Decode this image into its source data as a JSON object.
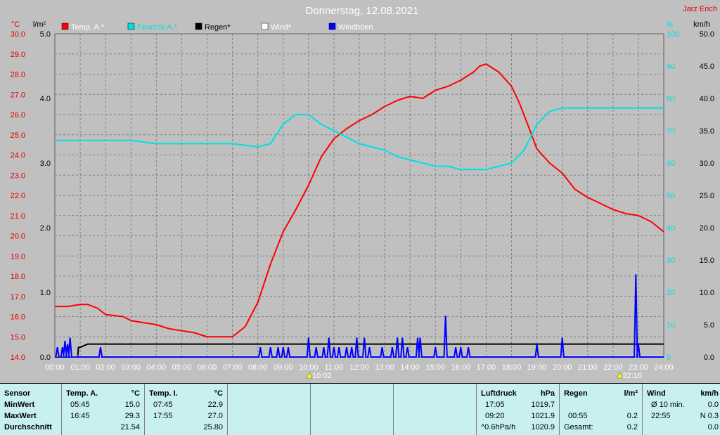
{
  "header": {
    "title": "Donnerstag, 12.08.2021",
    "user": "Jarz Erich"
  },
  "colors": {
    "temp": "#ff0000",
    "humidity": "#00e0e0",
    "rain": "#000000",
    "wind": "#ffffff",
    "gusts": "#0000ff",
    "grid": "#808080",
    "plot_bg": "#c0c0c0",
    "table_bg": "#c8f0f0"
  },
  "chart_data": {
    "type": "line",
    "title": "Donnerstag, 12.08.2021",
    "x_ticks": [
      "00:00",
      "01:00",
      "02:00",
      "03:00",
      "04:00",
      "05:00",
      "06:00",
      "07:00",
      "08:00",
      "09:00",
      "10:00",
      "11:00",
      "12:00",
      "13:00",
      "14:00",
      "15:00",
      "16:00",
      "17:00",
      "18:00",
      "19:00",
      "20:00",
      "21:00",
      "22:00",
      "23:00",
      "24:00"
    ],
    "axes": {
      "temp": {
        "unit": "°C",
        "range": [
          14.0,
          30.0
        ],
        "ticks": [
          "30.0",
          "29.0",
          "28.0",
          "27.0",
          "26.0",
          "25.0",
          "24.0",
          "23.0",
          "22.0",
          "21.0",
          "20.0",
          "19.0",
          "18.0",
          "17.0",
          "16.0",
          "15.0",
          "14.0"
        ]
      },
      "rain": {
        "unit": "l/m²",
        "range": [
          0.0,
          5.0
        ],
        "ticks": [
          "5.0",
          "4.0",
          "3.0",
          "2.0",
          "1.0",
          "0.0"
        ]
      },
      "humidity": {
        "unit": "%",
        "range": [
          0,
          100
        ],
        "ticks": [
          "100",
          "90",
          "80",
          "70",
          "60",
          "50",
          "40",
          "30",
          "20",
          "10",
          "0"
        ]
      },
      "wind": {
        "unit": "km/h",
        "range": [
          0.0,
          50.0
        ],
        "ticks": [
          "50.0",
          "45.0",
          "40.0",
          "35.0",
          "30.0",
          "25.0",
          "20.0",
          "15.0",
          "10.0",
          "5.0",
          "0.0"
        ]
      }
    },
    "series": [
      {
        "name": "Temp. A.*",
        "axis": "temp",
        "x": [
          0,
          0.5,
          1,
          1.3,
          1.7,
          2,
          2.7,
          3,
          3.5,
          4,
          4.5,
          5,
          5.5,
          5.75,
          6,
          6.5,
          7,
          7.5,
          8,
          8.5,
          9,
          9.5,
          10,
          10.5,
          11,
          11.5,
          12,
          12.5,
          13,
          13.5,
          14,
          14.5,
          15,
          15.5,
          16,
          16.5,
          16.75,
          17,
          17.5,
          18,
          18.3,
          18.7,
          19,
          19.5,
          20,
          20.5,
          21,
          21.5,
          22,
          22.5,
          23,
          23.5,
          24
        ],
        "y": [
          16.5,
          16.5,
          16.6,
          16.6,
          16.4,
          16.1,
          16.0,
          15.8,
          15.7,
          15.6,
          15.4,
          15.3,
          15.2,
          15.1,
          15.0,
          15.0,
          15.0,
          15.5,
          16.7,
          18.6,
          20.2,
          21.3,
          22.5,
          23.9,
          24.8,
          25.3,
          25.7,
          26.0,
          26.4,
          26.7,
          26.9,
          26.8,
          27.2,
          27.4,
          27.7,
          28.1,
          28.4,
          28.5,
          28.1,
          27.4,
          26.6,
          25.3,
          24.3,
          23.6,
          23.1,
          22.3,
          21.9,
          21.6,
          21.3,
          21.1,
          21.0,
          20.7,
          20.2
        ]
      },
      {
        "name": "Feuchte A.*",
        "axis": "humidity",
        "x": [
          0,
          1,
          2,
          3,
          4,
          5,
          6,
          7,
          8,
          8.5,
          9,
          9.5,
          10,
          10.5,
          11,
          11.5,
          12,
          12.5,
          13,
          13.5,
          14,
          14.5,
          15,
          15.5,
          16,
          16.5,
          17,
          17.5,
          18,
          18.5,
          19,
          19.5,
          20,
          20.5,
          21,
          22,
          23,
          24
        ],
        "y": [
          67,
          67,
          67,
          67,
          66,
          66,
          66,
          66,
          65,
          66,
          72,
          75,
          75,
          72,
          70,
          68,
          66,
          65,
          64,
          62,
          61,
          60,
          59,
          59,
          58,
          58,
          58,
          59,
          60,
          64,
          72,
          76,
          77,
          77,
          77,
          77,
          77,
          77
        ]
      },
      {
        "name": "Regen*",
        "axis": "rain",
        "x": [
          0,
          0.9,
          0.93,
          1,
          1.3,
          1.5,
          2,
          24
        ],
        "y": [
          0,
          0,
          0.15,
          0.15,
          0.2,
          0.2,
          0.2,
          0.2
        ]
      },
      {
        "name": "Wind*",
        "axis": "wind",
        "x": [
          0,
          24
        ],
        "y": [
          0,
          0
        ]
      },
      {
        "name": "Windböen",
        "axis": "wind",
        "x": [
          0.1,
          0.3,
          0.4,
          0.5,
          0.6,
          1.8,
          8.1,
          8.5,
          8.8,
          9.0,
          9.2,
          10.0,
          10.3,
          10.6,
          10.8,
          11.0,
          11.2,
          11.5,
          11.7,
          11.9,
          12.2,
          12.4,
          12.9,
          13.3,
          13.5,
          13.7,
          13.9,
          14.3,
          14.4,
          15.0,
          15.4,
          15.8,
          16.0,
          16.3,
          19.0,
          20.0,
          22.9,
          23.0
        ],
        "y": [
          1.5,
          1.5,
          2.5,
          2.0,
          3.0,
          1.5,
          1.5,
          1.5,
          1.5,
          1.5,
          1.5,
          3.0,
          1.5,
          1.5,
          3.0,
          1.5,
          1.5,
          1.5,
          1.5,
          3.0,
          3.0,
          1.5,
          1.5,
          1.5,
          3.0,
          3.0,
          1.5,
          3.0,
          3.0,
          1.5,
          6.4,
          1.5,
          1.5,
          1.5,
          2.0,
          3.0,
          12.8,
          2.0
        ]
      }
    ],
    "markers": [
      {
        "time": "10:02"
      },
      {
        "time": "22:16"
      }
    ],
    "grid": true
  },
  "table": {
    "sensor": {
      "header": "Sensor",
      "rows": [
        "MinWert",
        "MaxWert",
        "Durchschnitt"
      ]
    },
    "temp_a": {
      "header": "Temp. A.",
      "unit": "°C",
      "min_time": "05:45",
      "min_val": "15.0",
      "max_time": "16:45",
      "max_val": "29.3",
      "avg": "21.54"
    },
    "temp_i": {
      "header": "Temp. I.",
      "unit": "°C",
      "min_time": "07:45",
      "min_val": "22.9",
      "max_time": "17:55",
      "max_val": "27.0",
      "avg": "25.80"
    },
    "pressure": {
      "header": "Luftdruck",
      "unit": "hPa",
      "min_time": "17:05",
      "min_val": "1019.7",
      "max_time": "09:20",
      "max_val": "1021.9",
      "trend": "^0.6hPa/h",
      "trend_val": "1020.9"
    },
    "rain": {
      "header": "Regen",
      "unit": "l/m²",
      "r2_label": "00:55",
      "r2_val": "0.2",
      "r3_label": "Gesamt:",
      "r3_val": "0.2"
    },
    "wind": {
      "header": "Wind",
      "unit": "km/h",
      "r1_label": "Ø 10 min.",
      "r1_val": "0.0",
      "r2_label": "22:55",
      "r2_val": "N 0.3",
      "r3_val": "0.0"
    }
  }
}
